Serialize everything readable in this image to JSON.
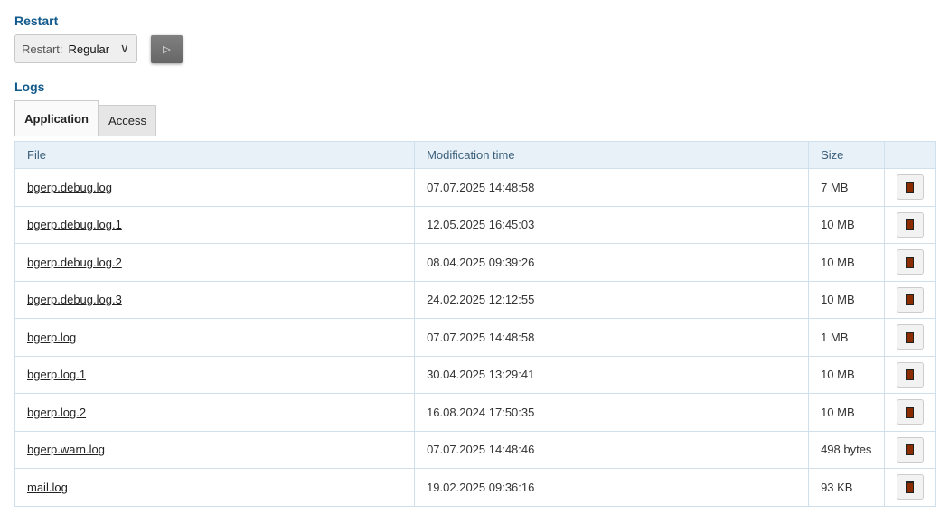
{
  "restart": {
    "heading": "Restart",
    "select_label": "Restart:",
    "select_value": "Regular",
    "run_icon": "play-icon"
  },
  "logs": {
    "heading": "Logs",
    "tabs": [
      {
        "label": "Application",
        "active": true
      },
      {
        "label": "Access",
        "active": false
      }
    ],
    "columns": [
      "File",
      "Modification time",
      "Size",
      ""
    ],
    "rows": [
      {
        "file": "bgerp.debug.log",
        "time": "07.07.2025 14:48:58",
        "size": "7 MB"
      },
      {
        "file": "bgerp.debug.log.1",
        "time": "12.05.2025 16:45:03",
        "size": "10 MB"
      },
      {
        "file": "bgerp.debug.log.2",
        "time": "08.04.2025 09:39:26",
        "size": "10 MB"
      },
      {
        "file": "bgerp.debug.log.3",
        "time": "24.02.2025 12:12:55",
        "size": "10 MB"
      },
      {
        "file": "bgerp.log",
        "time": "07.07.2025 14:48:58",
        "size": "1 MB"
      },
      {
        "file": "bgerp.log.1",
        "time": "30.04.2025 13:29:41",
        "size": "10 MB"
      },
      {
        "file": "bgerp.log.2",
        "time": "16.08.2024 17:50:35",
        "size": "10 MB"
      },
      {
        "file": "bgerp.warn.log",
        "time": "07.07.2025 14:48:46",
        "size": "498 bytes"
      },
      {
        "file": "mail.log",
        "time": "19.02.2025 09:36:16",
        "size": "93 KB"
      }
    ]
  }
}
